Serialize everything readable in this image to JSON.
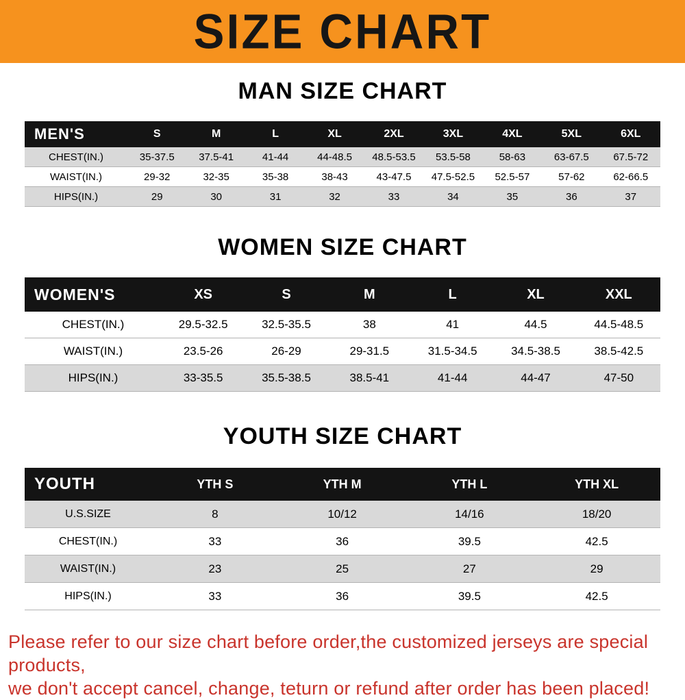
{
  "banner": {
    "title": "SIZE CHART"
  },
  "colors": {
    "banner_bg": "#f6921e",
    "header_row_bg": "#141414",
    "stripe": "#d9d9d9",
    "footer_text": "#c9342c"
  },
  "sections": [
    {
      "heading": "MAN SIZE CHART",
      "table": {
        "header_label": "MEN'S",
        "columns": [
          "S",
          "M",
          "L",
          "XL",
          "2XL",
          "3XL",
          "4XL",
          "5XL",
          "6XL"
        ],
        "rows": [
          {
            "label": "CHEST(IN.)",
            "values": [
              "35-37.5",
              "37.5-41",
              "41-44",
              "44-48.5",
              "48.5-53.5",
              "53.5-58",
              "58-63",
              "63-67.5",
              "67.5-72"
            ]
          },
          {
            "label": "WAIST(IN.)",
            "values": [
              "29-32",
              "32-35",
              "35-38",
              "38-43",
              "43-47.5",
              "47.5-52.5",
              "52.5-57",
              "57-62",
              "62-66.5"
            ]
          },
          {
            "label": "HIPS(IN.)",
            "values": [
              "29",
              "30",
              "31",
              "32",
              "33",
              "34",
              "35",
              "36",
              "37"
            ]
          }
        ]
      }
    },
    {
      "heading": "WOMEN SIZE CHART",
      "table": {
        "header_label": "WOMEN'S",
        "columns": [
          "XS",
          "S",
          "M",
          "L",
          "XL",
          "XXL"
        ],
        "rows": [
          {
            "label": "CHEST(IN.)",
            "values": [
              "29.5-32.5",
              "32.5-35.5",
              "38",
              "41",
              "44.5",
              "44.5-48.5"
            ]
          },
          {
            "label": "WAIST(IN.)",
            "values": [
              "23.5-26",
              "26-29",
              "29-31.5",
              "31.5-34.5",
              "34.5-38.5",
              "38.5-42.5"
            ]
          },
          {
            "label": "HIPS(IN.)",
            "values": [
              "33-35.5",
              "35.5-38.5",
              "38.5-41",
              "41-44",
              "44-47",
              "47-50"
            ]
          }
        ]
      }
    },
    {
      "heading": "YOUTH SIZE CHART",
      "table": {
        "header_label": "YOUTH",
        "columns": [
          "YTH S",
          "YTH M",
          "YTH L",
          "YTH XL"
        ],
        "rows": [
          {
            "label": "U.S.SIZE",
            "values": [
              "8",
              "10/12",
              "14/16",
              "18/20"
            ]
          },
          {
            "label": "CHEST(IN.)",
            "values": [
              "33",
              "36",
              "39.5",
              "42.5"
            ]
          },
          {
            "label": "WAIST(IN.)",
            "values": [
              "23",
              "25",
              "27",
              "29"
            ]
          },
          {
            "label": "HIPS(IN.)",
            "values": [
              "33",
              "36",
              "39.5",
              "42.5"
            ]
          }
        ]
      }
    }
  ],
  "footer": {
    "lines": [
      "Please refer to our size chart before order,the customized jerseys are special products,",
      "we don't accept cancel, change, teturn or refund after order has been placed!"
    ]
  }
}
